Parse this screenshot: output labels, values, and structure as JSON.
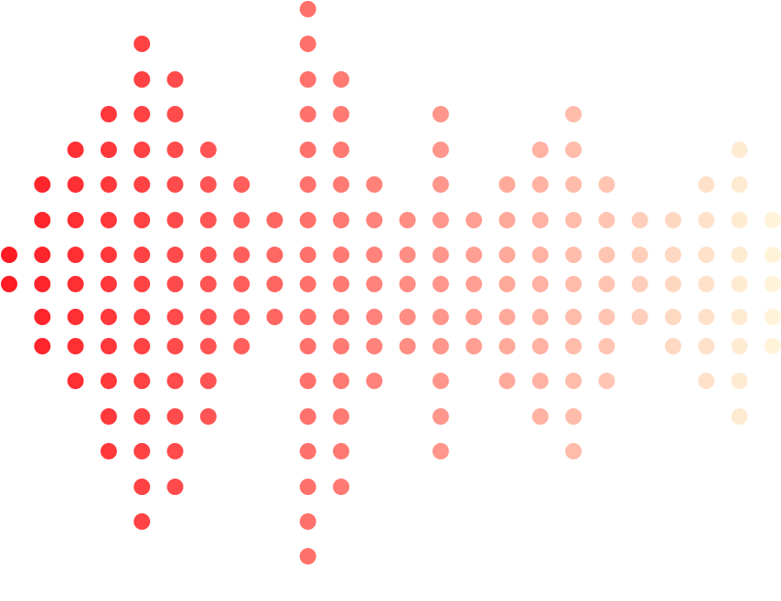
{
  "graphic": {
    "type": "dot-matrix-equalizer",
    "colors": {
      "background": "#ffffff",
      "gradient_start": "#ff1c24",
      "gradient_end": "#fff4da"
    },
    "column_row_ranges": [
      [
        7,
        8
      ],
      [
        5,
        10
      ],
      [
        4,
        11
      ],
      [
        3,
        13
      ],
      [
        1,
        15
      ],
      [
        2,
        14
      ],
      [
        4,
        12
      ],
      [
        5,
        10
      ],
      [
        6,
        9
      ],
      [
        0,
        16
      ],
      [
        2,
        14
      ],
      [
        5,
        11
      ],
      [
        6,
        10
      ],
      [
        3,
        13
      ],
      [
        6,
        10
      ],
      [
        5,
        11
      ],
      [
        4,
        12
      ],
      [
        3,
        13
      ],
      [
        5,
        11
      ],
      [
        6,
        9
      ],
      [
        6,
        10
      ],
      [
        5,
        11
      ],
      [
        4,
        12
      ],
      [
        6,
        10
      ]
    ]
  }
}
